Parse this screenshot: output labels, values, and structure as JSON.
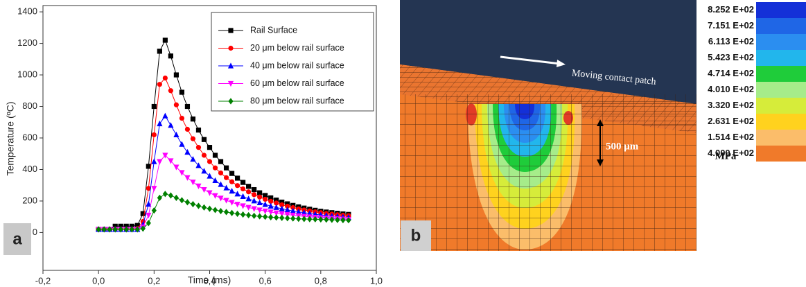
{
  "chart_data": {
    "type": "line",
    "panel_label": "a",
    "x_label": "Time (ms)",
    "y_label": "Temperature (ºC)",
    "xlim": [
      -0.2,
      1.0
    ],
    "ylim": [
      -240,
      1440
    ],
    "xticks": [
      {
        "value": -0.2,
        "label": "-0,2"
      },
      {
        "value": 0,
        "label": "0,0"
      },
      {
        "value": 0.2,
        "label": "0,2"
      },
      {
        "value": 0.4,
        "label": "0,4"
      },
      {
        "value": 0.6,
        "label": "0,6"
      },
      {
        "value": 0.8,
        "label": "0,8"
      },
      {
        "value": 1.0,
        "label": "1,0"
      }
    ],
    "yticks": [
      0,
      200,
      400,
      600,
      800,
      1000,
      1200,
      1400
    ],
    "grid": false,
    "legend": "upper right",
    "x": [
      0,
      0.02,
      0.04,
      0.06,
      0.08,
      0.1,
      0.12,
      0.14,
      0.16,
      0.18,
      0.2,
      0.22,
      0.24,
      0.26,
      0.28,
      0.3,
      0.32,
      0.34,
      0.36,
      0.38,
      0.4,
      0.42,
      0.44,
      0.46,
      0.48,
      0.5,
      0.52,
      0.54,
      0.56,
      0.58,
      0.6,
      0.62,
      0.64,
      0.66,
      0.68,
      0.7,
      0.72,
      0.74,
      0.76,
      0.78,
      0.8,
      0.82,
      0.84,
      0.86,
      0.88,
      0.9
    ],
    "series": [
      {
        "name": "Rail Surface",
        "color": "#000000",
        "marker": "square",
        "values": [
          20,
          20,
          20,
          40,
          40,
          40,
          40,
          45,
          120,
          420,
          800,
          1150,
          1220,
          1120,
          1000,
          890,
          800,
          720,
          650,
          590,
          540,
          490,
          450,
          410,
          375,
          345,
          318,
          293,
          272,
          252,
          235,
          220,
          206,
          193,
          182,
          172,
          163,
          155,
          148,
          141,
          135,
          130,
          126,
          122,
          118,
          115
        ]
      },
      {
        "name": "20 μm below rail surface",
        "color": "#ff0000",
        "marker": "circle",
        "values": [
          20,
          20,
          20,
          20,
          20,
          20,
          20,
          25,
          70,
          280,
          620,
          940,
          980,
          900,
          810,
          725,
          655,
          595,
          540,
          490,
          450,
          410,
          378,
          348,
          322,
          298,
          277,
          258,
          240,
          225,
          211,
          198,
          187,
          176,
          167,
          158,
          150,
          143,
          137,
          131,
          126,
          121,
          117,
          113,
          110,
          107
        ]
      },
      {
        "name": "40 μm below rail surface",
        "color": "#0000ff",
        "marker": "triangle-up",
        "values": [
          20,
          20,
          20,
          20,
          20,
          20,
          20,
          20,
          50,
          180,
          450,
          690,
          740,
          680,
          620,
          560,
          510,
          465,
          425,
          390,
          358,
          330,
          305,
          283,
          263,
          245,
          229,
          214,
          201,
          189,
          178,
          168,
          159,
          151,
          144,
          137,
          131,
          126,
          121,
          116,
          112,
          108,
          105,
          102,
          99,
          96
        ]
      },
      {
        "name": "60 μm below rail surface",
        "color": "#ff00ff",
        "marker": "triangle-down",
        "values": [
          20,
          20,
          20,
          20,
          20,
          20,
          20,
          20,
          35,
          110,
          280,
          450,
          490,
          455,
          415,
          380,
          348,
          320,
          295,
          272,
          252,
          234,
          218,
          204,
          191,
          179,
          169,
          159,
          151,
          143,
          136,
          130,
          124,
          119,
          114,
          110,
          106,
          102,
          99,
          96,
          93,
          91,
          89,
          87,
          85,
          83
        ]
      },
      {
        "name": "80 μm below rail surface",
        "color": "#008000",
        "marker": "diamond",
        "values": [
          20,
          20,
          20,
          20,
          20,
          20,
          20,
          20,
          25,
          60,
          140,
          220,
          245,
          235,
          220,
          205,
          192,
          180,
          169,
          159,
          151,
          143,
          136,
          130,
          124,
          119,
          114,
          110,
          106,
          103,
          100,
          97,
          95,
          93,
          91,
          89,
          87,
          86,
          85,
          84,
          83,
          82,
          81,
          80,
          79,
          78
        ]
      }
    ]
  },
  "panel_b": {
    "label": "b",
    "annotation": "Moving contact patch",
    "scale_bar": "500 μm",
    "unit": "MPa",
    "legend_labels": [
      "8.252 E+02",
      "7.151 E+02",
      "6.113 E+02",
      "5.423 E+02",
      "4.714 E+02",
      "4.010 E+02",
      "3.320 E+02",
      "2.631 E+02",
      "1.514 E+02",
      "4.000 E+02"
    ],
    "legend_colors": [
      "#1430d8",
      "#1f66e6",
      "#2b8ef0",
      "#22b6ec",
      "#1fcc3a",
      "#a6ec8a",
      "#d6ec3a",
      "#ffd21e",
      "#fbbd6a",
      "#f07a2a"
    ]
  }
}
